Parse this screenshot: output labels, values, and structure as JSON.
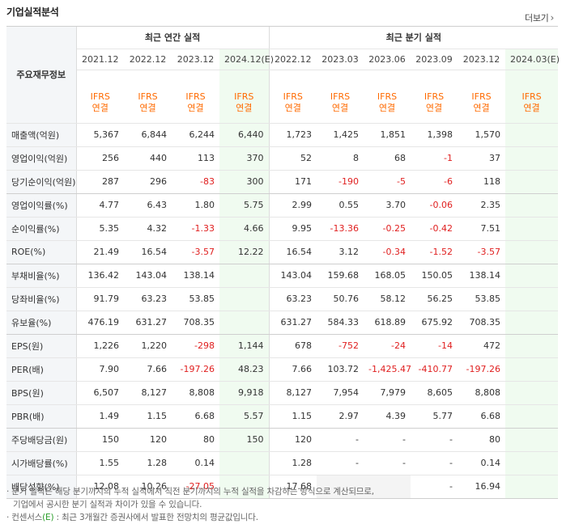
{
  "header": {
    "title": "기업실적분석",
    "more_label": "더보기"
  },
  "table": {
    "label_header": "주요재무정보",
    "annual_group": "최근 연간 실적",
    "quarter_group": "최근 분기 실적",
    "annual_dates": [
      "2021.12",
      "2022.12",
      "2023.12",
      "2024.12(E)"
    ],
    "quarter_dates": [
      "2022.12",
      "2023.03",
      "2023.06",
      "2023.09",
      "2023.12",
      "2024.03(E)"
    ],
    "ifrs_label": "IFRS",
    "consolidated_label": "연결",
    "rows": [
      {
        "label": "매출액(억원)",
        "annual": [
          "5,367",
          "6,844",
          "6,244",
          "6,440"
        ],
        "quarter": [
          "1,723",
          "1,425",
          "1,851",
          "1,398",
          "1,570",
          ""
        ]
      },
      {
        "label": "영업이익(억원)",
        "annual": [
          "256",
          "440",
          "113",
          "370"
        ],
        "quarter": [
          "52",
          "8",
          "68",
          "-1",
          "37",
          ""
        ]
      },
      {
        "label": "당기순이익(억원)",
        "annual": [
          "287",
          "296",
          "-83",
          "300"
        ],
        "quarter": [
          "171",
          "-190",
          "-5",
          "-6",
          "118",
          ""
        ]
      },
      {
        "label": "영업이익률(%)",
        "annual": [
          "4.77",
          "6.43",
          "1.80",
          "5.75"
        ],
        "quarter": [
          "2.99",
          "0.55",
          "3.70",
          "-0.06",
          "2.35",
          ""
        ]
      },
      {
        "label": "순이익률(%)",
        "annual": [
          "5.35",
          "4.32",
          "-1.33",
          "4.66"
        ],
        "quarter": [
          "9.95",
          "-13.36",
          "-0.25",
          "-0.42",
          "7.51",
          ""
        ]
      },
      {
        "label": "ROE(%)",
        "annual": [
          "21.49",
          "16.54",
          "-3.57",
          "12.22"
        ],
        "quarter": [
          "16.54",
          "3.12",
          "-0.34",
          "-1.52",
          "-3.57",
          ""
        ]
      },
      {
        "label": "부채비율(%)",
        "annual": [
          "136.42",
          "143.04",
          "138.14",
          ""
        ],
        "quarter": [
          "143.04",
          "159.68",
          "168.05",
          "150.05",
          "138.14",
          ""
        ]
      },
      {
        "label": "당좌비율(%)",
        "annual": [
          "91.79",
          "63.23",
          "53.85",
          ""
        ],
        "quarter": [
          "63.23",
          "50.76",
          "58.12",
          "56.25",
          "53.85",
          ""
        ]
      },
      {
        "label": "유보율(%)",
        "annual": [
          "476.19",
          "631.27",
          "708.35",
          ""
        ],
        "quarter": [
          "631.27",
          "584.33",
          "618.89",
          "675.92",
          "708.35",
          ""
        ]
      },
      {
        "label": "EPS(원)",
        "annual": [
          "1,226",
          "1,220",
          "-298",
          "1,144"
        ],
        "quarter": [
          "678",
          "-752",
          "-24",
          "-14",
          "472",
          ""
        ]
      },
      {
        "label": "PER(배)",
        "annual": [
          "7.90",
          "7.66",
          "-197.26",
          "48.23"
        ],
        "quarter": [
          "7.66",
          "103.72",
          "-1,425.47",
          "-410.77",
          "-197.26",
          ""
        ]
      },
      {
        "label": "BPS(원)",
        "annual": [
          "6,507",
          "8,127",
          "8,808",
          "9,918"
        ],
        "quarter": [
          "8,127",
          "7,954",
          "7,979",
          "8,605",
          "8,808",
          ""
        ]
      },
      {
        "label": "PBR(배)",
        "annual": [
          "1.49",
          "1.15",
          "6.68",
          "5.57"
        ],
        "quarter": [
          "1.15",
          "2.97",
          "4.39",
          "5.77",
          "6.68",
          ""
        ]
      },
      {
        "label": "주당배당금(원)",
        "annual": [
          "150",
          "120",
          "80",
          "150"
        ],
        "quarter": [
          "120",
          "-",
          "-",
          "-",
          "80",
          ""
        ]
      },
      {
        "label": "시가배당률(%)",
        "annual": [
          "1.55",
          "1.28",
          "0.14",
          ""
        ],
        "quarter": [
          "1.28",
          "-",
          "-",
          "-",
          "0.14",
          ""
        ]
      },
      {
        "label": "배당성향(%)",
        "annual": [
          "12.08",
          "10.26",
          "-27.05",
          ""
        ],
        "quarter": [
          "17.68",
          "",
          "",
          "-",
          "16.94",
          ""
        ]
      }
    ]
  },
  "notes": {
    "line1": "분기 실적은 해당 분기까지의 누적 실적에서 직전 분기까지의 누적 실적을 차감하는 방식으로 계산되므로,",
    "line2": "기업에서 공시한 분기 실적과 차이가 있을 수 있습니다.",
    "line3_prefix": "컨센서스",
    "line3_e": "(E)",
    "line3_suffix": ": 최근 3개월간 증권사에서 발표한 전망치의 평균값입니다."
  },
  "colors": {
    "negative": "#e02020",
    "ifrs": "#ff6a00",
    "projection_bg": "#f0fbf0",
    "label_bg": "#f4f6f8"
  }
}
